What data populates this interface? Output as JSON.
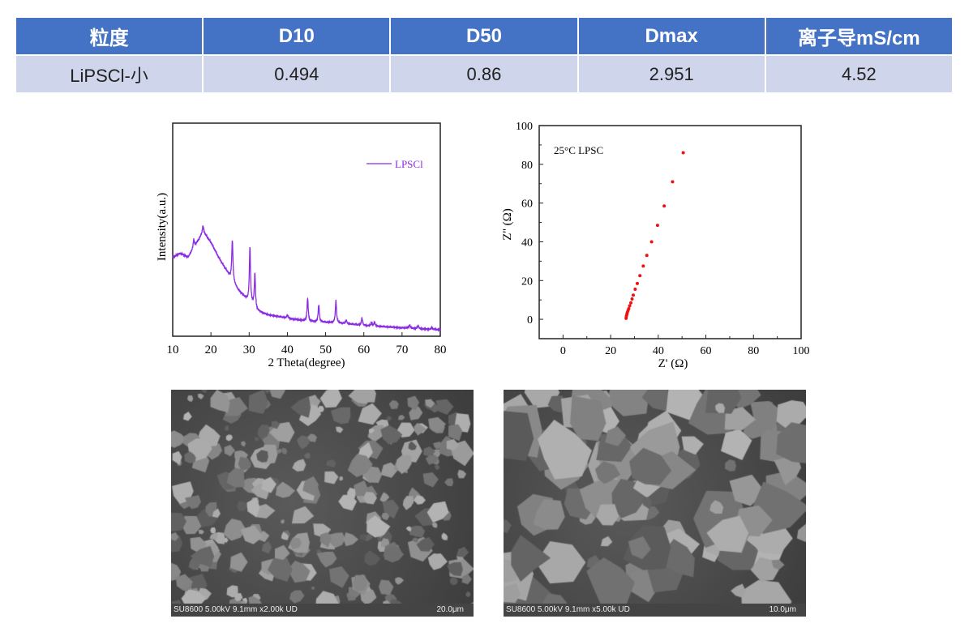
{
  "table": {
    "headers": [
      "粒度",
      "D10",
      "D50",
      "Dmax",
      "离子导mS/cm"
    ],
    "row": [
      "LiPSCl-小",
      "0.494",
      "0.86",
      "2.951",
      "4.52"
    ]
  },
  "chart_data": [
    {
      "type": "line",
      "title": "",
      "xlabel": "2 Theta(degree)",
      "ylabel": "Intensity(a.u.)",
      "xlim": [
        10,
        80
      ],
      "ylim": [
        0,
        100
      ],
      "xticks": [
        "10",
        "20",
        "30",
        "40",
        "50",
        "60",
        "70",
        "80"
      ],
      "legend": {
        "label": "LPSCl",
        "position": "top-right"
      },
      "color": "#8b2be2",
      "baseline": [
        [
          10,
          37
        ],
        [
          12,
          39
        ],
        [
          14,
          37
        ],
        [
          16,
          43
        ],
        [
          18,
          49
        ],
        [
          20,
          44
        ],
        [
          22,
          37
        ],
        [
          24,
          31
        ],
        [
          25,
          28
        ],
        [
          27,
          22
        ],
        [
          29.5,
          17
        ],
        [
          31,
          14.5
        ],
        [
          32,
          12
        ],
        [
          35,
          10
        ],
        [
          40,
          8.5
        ],
        [
          45,
          7
        ],
        [
          50,
          6.5
        ],
        [
          55,
          6
        ],
        [
          60,
          5
        ],
        [
          65,
          4.5
        ],
        [
          70,
          4
        ],
        [
          75,
          3.5
        ],
        [
          80,
          3
        ]
      ],
      "peaks": [
        [
          15.5,
          4
        ],
        [
          17.9,
          3
        ],
        [
          25.6,
          19
        ],
        [
          30.2,
          26
        ],
        [
          31.5,
          16
        ],
        [
          40,
          1.5
        ],
        [
          45.3,
          11
        ],
        [
          48.2,
          8
        ],
        [
          52.7,
          10.5
        ],
        [
          55.4,
          1.5
        ],
        [
          59.5,
          3.5
        ],
        [
          62,
          1.5
        ],
        [
          62.8,
          2
        ],
        [
          72,
          1.5
        ],
        [
          74.2,
          1.5
        ],
        [
          77.8,
          0.8
        ]
      ]
    },
    {
      "type": "scatter",
      "title": "",
      "xlabel": "Z' (Ω)",
      "ylabel": "Z'' (Ω)",
      "xlim": [
        -10,
        100
      ],
      "ylim": [
        -10,
        100
      ],
      "xticks": [
        "0",
        "20",
        "40",
        "60",
        "80",
        "100"
      ],
      "yticks": [
        "0",
        "20",
        "40",
        "60",
        "80",
        "100"
      ],
      "annotation": "25°C LPSC",
      "color": "#ee1111",
      "points": [
        [
          26.5,
          0.5
        ],
        [
          26.6,
          1.5
        ],
        [
          26.8,
          2.5
        ],
        [
          27,
          3.5
        ],
        [
          27.3,
          4.5
        ],
        [
          27.6,
          5.5
        ],
        [
          28,
          7
        ],
        [
          28.5,
          8.5
        ],
        [
          29,
          10.5
        ],
        [
          29.5,
          12.5
        ],
        [
          30.3,
          15.5
        ],
        [
          31.2,
          18.5
        ],
        [
          32.3,
          22.5
        ],
        [
          33.7,
          27.5
        ],
        [
          35.2,
          33
        ],
        [
          37.2,
          40
        ],
        [
          39.7,
          48.5
        ],
        [
          42.5,
          58.5
        ],
        [
          46,
          71
        ],
        [
          50.5,
          86
        ]
      ]
    }
  ],
  "sem": [
    {
      "info": "SU8600 5.00kV 9.1mm x2.00k UD",
      "scale": "20.0μm"
    },
    {
      "info": "SU8600 5.00kV 9.1mm x5.00k UD",
      "scale": "10.0μm"
    }
  ]
}
